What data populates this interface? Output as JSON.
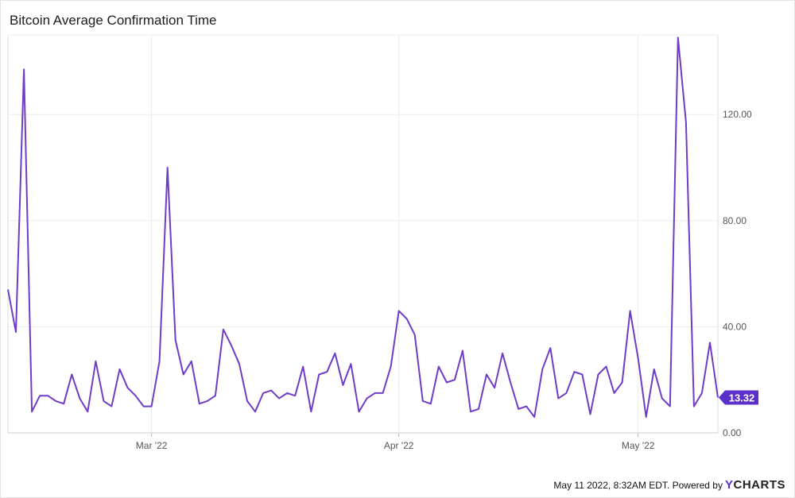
{
  "title": "Bitcoin Average Confirmation Time",
  "footer": {
    "timestamp": "May 11 2022, 8:32AM EDT.",
    "powered_by": "Powered by",
    "brand_y": "Y",
    "brand_rest": "CHARTS"
  },
  "colors": {
    "series": "#6f3cc8",
    "label_bg": "#5b2fc9",
    "grid": "#ececec"
  },
  "chart_data": {
    "type": "line",
    "title": "Bitcoin Average Confirmation Time",
    "ylim": [
      0,
      150
    ],
    "y_ticks": [
      "0.00",
      "40.00",
      "80.00",
      "120.00"
    ],
    "y_tick_values": [
      0,
      40,
      80,
      120
    ],
    "x_ticks": [
      {
        "label": "Mar '22",
        "date": "2022-03-01"
      },
      {
        "label": "Apr '22",
        "date": "2022-04-01"
      },
      {
        "label": "May '22",
        "date": "2022-05-01"
      }
    ],
    "last_value_label": "13.32",
    "grid": true,
    "series": [
      {
        "points": [
          [
            "2022-02-11",
            54
          ],
          [
            "2022-02-12",
            38
          ],
          [
            "2022-02-13",
            137
          ],
          [
            "2022-02-14",
            8
          ],
          [
            "2022-02-15",
            14
          ],
          [
            "2022-02-16",
            14
          ],
          [
            "2022-02-17",
            12
          ],
          [
            "2022-02-18",
            11
          ],
          [
            "2022-02-19",
            22
          ],
          [
            "2022-02-20",
            13
          ],
          [
            "2022-02-21",
            8
          ],
          [
            "2022-02-22",
            27
          ],
          [
            "2022-02-23",
            12
          ],
          [
            "2022-02-24",
            10
          ],
          [
            "2022-02-25",
            24
          ],
          [
            "2022-02-26",
            17
          ],
          [
            "2022-02-27",
            14
          ],
          [
            "2022-02-28",
            10
          ],
          [
            "2022-03-01",
            10
          ],
          [
            "2022-03-02",
            27
          ],
          [
            "2022-03-03",
            100
          ],
          [
            "2022-03-04",
            35
          ],
          [
            "2022-03-05",
            22
          ],
          [
            "2022-03-06",
            27
          ],
          [
            "2022-03-07",
            11
          ],
          [
            "2022-03-08",
            12
          ],
          [
            "2022-03-09",
            14
          ],
          [
            "2022-03-10",
            39
          ],
          [
            "2022-03-11",
            33
          ],
          [
            "2022-03-12",
            26
          ],
          [
            "2022-03-13",
            12
          ],
          [
            "2022-03-14",
            8
          ],
          [
            "2022-03-15",
            15
          ],
          [
            "2022-03-16",
            16
          ],
          [
            "2022-03-17",
            13
          ],
          [
            "2022-03-18",
            15
          ],
          [
            "2022-03-19",
            14
          ],
          [
            "2022-03-20",
            25
          ],
          [
            "2022-03-21",
            8
          ],
          [
            "2022-03-22",
            22
          ],
          [
            "2022-03-23",
            23
          ],
          [
            "2022-03-24",
            30
          ],
          [
            "2022-03-25",
            18
          ],
          [
            "2022-03-26",
            26
          ],
          [
            "2022-03-27",
            8
          ],
          [
            "2022-03-28",
            13
          ],
          [
            "2022-03-29",
            15
          ],
          [
            "2022-03-30",
            15
          ],
          [
            "2022-03-31",
            25
          ],
          [
            "2022-04-01",
            46
          ],
          [
            "2022-04-02",
            43
          ],
          [
            "2022-04-03",
            37
          ],
          [
            "2022-04-04",
            12
          ],
          [
            "2022-04-05",
            11
          ],
          [
            "2022-04-06",
            25
          ],
          [
            "2022-04-07",
            19
          ],
          [
            "2022-04-08",
            20
          ],
          [
            "2022-04-09",
            31
          ],
          [
            "2022-04-10",
            8
          ],
          [
            "2022-04-11",
            9
          ],
          [
            "2022-04-12",
            22
          ],
          [
            "2022-04-13",
            17
          ],
          [
            "2022-04-14",
            30
          ],
          [
            "2022-04-15",
            19
          ],
          [
            "2022-04-16",
            9
          ],
          [
            "2022-04-17",
            10
          ],
          [
            "2022-04-18",
            6
          ],
          [
            "2022-04-19",
            24
          ],
          [
            "2022-04-20",
            32
          ],
          [
            "2022-04-21",
            13
          ],
          [
            "2022-04-22",
            15
          ],
          [
            "2022-04-23",
            23
          ],
          [
            "2022-04-24",
            22
          ],
          [
            "2022-04-25",
            7
          ],
          [
            "2022-04-26",
            22
          ],
          [
            "2022-04-27",
            25
          ],
          [
            "2022-04-28",
            15
          ],
          [
            "2022-04-29",
            19
          ],
          [
            "2022-04-30",
            46
          ],
          [
            "2022-05-01",
            28
          ],
          [
            "2022-05-02",
            6
          ],
          [
            "2022-05-03",
            24
          ],
          [
            "2022-05-04",
            13
          ],
          [
            "2022-05-05",
            10
          ],
          [
            "2022-05-06",
            149
          ],
          [
            "2022-05-07",
            117
          ],
          [
            "2022-05-08",
            10
          ],
          [
            "2022-05-09",
            15
          ],
          [
            "2022-05-10",
            34
          ],
          [
            "2022-05-11",
            13.32
          ]
        ]
      }
    ]
  }
}
